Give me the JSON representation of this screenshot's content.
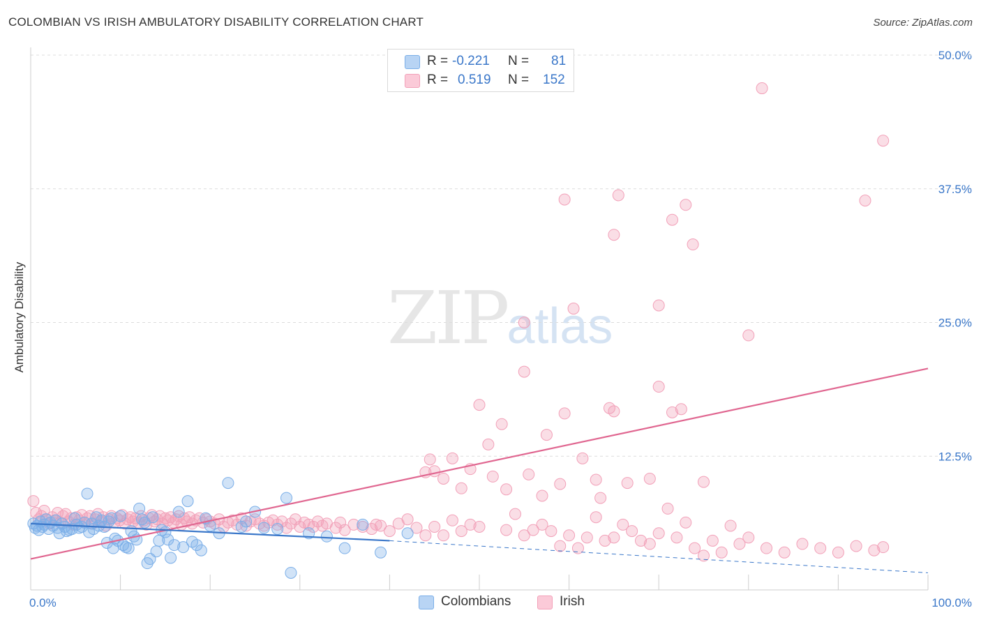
{
  "title": "COLOMBIAN VS IRISH AMBULATORY DISABILITY CORRELATION CHART",
  "source": "Source: ZipAtlas.com",
  "watermark": {
    "zip": "ZIP",
    "atlas": "atlas"
  },
  "legend": {
    "colombians": {
      "r_label": "R = ",
      "r_value": "-0.221",
      "n_label": "N = ",
      "n_value": "81"
    },
    "irish": {
      "r_label": "R = ",
      "r_value": "0.519",
      "n_label": "N = ",
      "n_value": "152"
    }
  },
  "bottom_legend": {
    "colombians": "Colombians",
    "irish": "Irish"
  },
  "colors": {
    "colombians": "#7aaee8",
    "colombians_line": "#3a77c9",
    "irish": "#f2a0b8",
    "irish_line": "#e06690",
    "tick_text": "#3a77c9"
  },
  "chart_data": {
    "type": "scatter",
    "title": "COLOMBIAN VS IRISH AMBULATORY DISABILITY CORRELATION CHART",
    "xlabel": "",
    "ylabel": "Ambulatory Disability",
    "xlim": [
      0,
      100
    ],
    "ylim": [
      0,
      52
    ],
    "x_tick_labels": [
      "0.0%",
      "100.0%"
    ],
    "y_ticks": [
      12.5,
      25,
      37.5,
      50
    ],
    "y_tick_labels": [
      "12.5%",
      "25.0%",
      "37.5%",
      "50.0%"
    ],
    "grid": true,
    "legend_position": "top-center",
    "series": [
      {
        "name": "Colombians",
        "r": -0.221,
        "n": 81,
        "trend": {
          "x0": 0,
          "y0": 6.2,
          "x1": 40,
          "y1": 4.6,
          "dash_to_x": 100,
          "dash_to_y": 1.6
        },
        "points": [
          [
            0.3,
            6.2
          ],
          [
            0.5,
            5.8
          ],
          [
            0.7,
            6.0
          ],
          [
            0.9,
            5.6
          ],
          [
            1.1,
            6.4
          ],
          [
            1.3,
            5.9
          ],
          [
            1.5,
            6.1
          ],
          [
            1.7,
            6.6
          ],
          [
            2.0,
            5.7
          ],
          [
            2.2,
            6.3
          ],
          [
            2.5,
            6.0
          ],
          [
            2.8,
            6.5
          ],
          [
            3.0,
            5.8
          ],
          [
            3.2,
            5.3
          ],
          [
            3.5,
            6.2
          ],
          [
            3.8,
            5.9
          ],
          [
            4.0,
            5.5
          ],
          [
            4.3,
            5.6
          ],
          [
            4.6,
            5.7
          ],
          [
            4.9,
            6.7
          ],
          [
            5.1,
            6.1
          ],
          [
            5.4,
            5.8
          ],
          [
            5.7,
            5.9
          ],
          [
            6.0,
            6.3
          ],
          [
            6.3,
            9.0
          ],
          [
            6.5,
            5.4
          ],
          [
            6.8,
            6.2
          ],
          [
            7.0,
            5.7
          ],
          [
            7.3,
            6.8
          ],
          [
            7.6,
            6.0
          ],
          [
            7.9,
            6.5
          ],
          [
            8.2,
            5.9
          ],
          [
            8.5,
            4.4
          ],
          [
            8.7,
            6.4
          ],
          [
            9.0,
            6.7
          ],
          [
            9.2,
            3.9
          ],
          [
            9.4,
            4.8
          ],
          [
            9.7,
            4.6
          ],
          [
            10.0,
            6.9
          ],
          [
            10.3,
            4.2
          ],
          [
            10.6,
            4.0
          ],
          [
            10.9,
            3.9
          ],
          [
            11.2,
            5.5
          ],
          [
            11.5,
            5.0
          ],
          [
            11.8,
            4.7
          ],
          [
            12.1,
            7.6
          ],
          [
            12.4,
            6.6
          ],
          [
            12.7,
            6.3
          ],
          [
            13.0,
            2.5
          ],
          [
            13.3,
            2.9
          ],
          [
            13.6,
            6.8
          ],
          [
            14.0,
            3.6
          ],
          [
            14.3,
            4.6
          ],
          [
            14.6,
            5.6
          ],
          [
            15.0,
            5.4
          ],
          [
            15.3,
            4.7
          ],
          [
            15.6,
            3.0
          ],
          [
            16.0,
            4.2
          ],
          [
            16.5,
            7.3
          ],
          [
            17.0,
            4.0
          ],
          [
            17.5,
            8.3
          ],
          [
            18.0,
            4.5
          ],
          [
            18.5,
            4.2
          ],
          [
            19.0,
            3.7
          ],
          [
            19.5,
            6.7
          ],
          [
            20.0,
            6.0
          ],
          [
            21.0,
            5.3
          ],
          [
            22.0,
            10.0
          ],
          [
            23.5,
            5.9
          ],
          [
            24.0,
            6.4
          ],
          [
            25.0,
            7.3
          ],
          [
            26.0,
            5.8
          ],
          [
            27.5,
            5.7
          ],
          [
            28.5,
            8.6
          ],
          [
            29.0,
            1.6
          ],
          [
            31.0,
            5.3
          ],
          [
            33.0,
            5.0
          ],
          [
            35.0,
            3.9
          ],
          [
            37.0,
            6.1
          ],
          [
            39.0,
            3.5
          ],
          [
            42.0,
            5.3
          ]
        ]
      },
      {
        "name": "Irish",
        "r": 0.519,
        "n": 152,
        "trend": {
          "x0": 0,
          "y0": 2.9,
          "x1": 100,
          "y1": 20.7
        },
        "points": [
          [
            0.3,
            8.3
          ],
          [
            0.6,
            7.2
          ],
          [
            0.9,
            6.6
          ],
          [
            1.2,
            6.9
          ],
          [
            1.5,
            7.4
          ],
          [
            1.8,
            6.6
          ],
          [
            2.1,
            6.2
          ],
          [
            2.4,
            6.8
          ],
          [
            2.7,
            6.5
          ],
          [
            3.0,
            7.2
          ],
          [
            3.3,
            6.3
          ],
          [
            3.6,
            6.9
          ],
          [
            3.9,
            7.1
          ],
          [
            4.2,
            6.4
          ],
          [
            4.5,
            6.7
          ],
          [
            4.8,
            6.1
          ],
          [
            5.1,
            6.8
          ],
          [
            5.4,
            6.5
          ],
          [
            5.7,
            7.0
          ],
          [
            6.0,
            6.3
          ],
          [
            6.3,
            6.7
          ],
          [
            6.6,
            6.9
          ],
          [
            6.9,
            6.2
          ],
          [
            7.2,
            6.6
          ],
          [
            7.5,
            7.1
          ],
          [
            7.8,
            6.4
          ],
          [
            8.1,
            6.8
          ],
          [
            8.4,
            6.0
          ],
          [
            8.7,
            6.6
          ],
          [
            9.0,
            6.9
          ],
          [
            9.3,
            6.3
          ],
          [
            9.6,
            6.7
          ],
          [
            9.9,
            6.5
          ],
          [
            10.2,
            7.0
          ],
          [
            10.5,
            6.2
          ],
          [
            10.8,
            6.6
          ],
          [
            11.1,
            6.8
          ],
          [
            11.4,
            6.4
          ],
          [
            11.7,
            6.7
          ],
          [
            12.0,
            6.3
          ],
          [
            12.3,
            6.9
          ],
          [
            12.6,
            6.5
          ],
          [
            12.9,
            6.1
          ],
          [
            13.2,
            6.7
          ],
          [
            13.5,
            7.0
          ],
          [
            13.8,
            6.4
          ],
          [
            14.1,
            6.6
          ],
          [
            14.4,
            6.9
          ],
          [
            14.7,
            6.2
          ],
          [
            15.0,
            6.7
          ],
          [
            15.3,
            6.5
          ],
          [
            15.6,
            6.8
          ],
          [
            15.9,
            6.3
          ],
          [
            16.2,
            6.6
          ],
          [
            16.5,
            6.9
          ],
          [
            16.8,
            6.1
          ],
          [
            17.1,
            6.7
          ],
          [
            17.4,
            6.4
          ],
          [
            17.7,
            6.8
          ],
          [
            18.0,
            6.2
          ],
          [
            18.4,
            6.5
          ],
          [
            18.8,
            6.7
          ],
          [
            19.2,
            6.3
          ],
          [
            19.6,
            6.6
          ],
          [
            20.0,
            6.4
          ],
          [
            20.5,
            6.2
          ],
          [
            21.0,
            6.6
          ],
          [
            21.5,
            5.9
          ],
          [
            22.0,
            6.3
          ],
          [
            22.5,
            6.5
          ],
          [
            23.0,
            6.1
          ],
          [
            23.5,
            6.7
          ],
          [
            24.0,
            6.0
          ],
          [
            24.5,
            6.4
          ],
          [
            25.0,
            6.6
          ],
          [
            25.5,
            6.2
          ],
          [
            26.0,
            6.0
          ],
          [
            26.5,
            6.3
          ],
          [
            27.0,
            6.5
          ],
          [
            27.5,
            6.1
          ],
          [
            28.0,
            6.4
          ],
          [
            28.5,
            5.8
          ],
          [
            29.0,
            6.2
          ],
          [
            29.5,
            6.6
          ],
          [
            30.0,
            5.9
          ],
          [
            30.5,
            6.3
          ],
          [
            31.0,
            6.1
          ],
          [
            31.5,
            5.9
          ],
          [
            32.0,
            6.4
          ],
          [
            32.5,
            6.0
          ],
          [
            33.0,
            6.2
          ],
          [
            34.0,
            5.8
          ],
          [
            34.5,
            6.3
          ],
          [
            35.0,
            5.6
          ],
          [
            36.0,
            6.1
          ],
          [
            37.0,
            5.9
          ],
          [
            38.0,
            5.7
          ],
          [
            38.5,
            6.1
          ],
          [
            39.0,
            6.0
          ],
          [
            40.0,
            5.5
          ],
          [
            41.0,
            6.2
          ],
          [
            42.0,
            6.6
          ],
          [
            43.0,
            5.8
          ],
          [
            44.0,
            5.1
          ],
          [
            45.0,
            5.9
          ],
          [
            46.0,
            5.1
          ],
          [
            47.0,
            6.5
          ],
          [
            48.0,
            5.5
          ],
          [
            49.0,
            6.1
          ],
          [
            50.0,
            5.9
          ],
          [
            53.0,
            5.6
          ],
          [
            54.0,
            7.1
          ],
          [
            55.0,
            5.1
          ],
          [
            56.0,
            5.6
          ],
          [
            57.0,
            6.1
          ],
          [
            58.0,
            5.5
          ],
          [
            59.0,
            4.1
          ],
          [
            60.0,
            5.1
          ],
          [
            61.0,
            3.9
          ],
          [
            62.0,
            4.9
          ],
          [
            63.0,
            6.8
          ],
          [
            64.0,
            4.6
          ],
          [
            65.0,
            4.9
          ],
          [
            66.0,
            6.1
          ],
          [
            67.0,
            5.5
          ],
          [
            68.0,
            4.6
          ],
          [
            69.0,
            4.3
          ],
          [
            70.0,
            5.3
          ],
          [
            71.0,
            7.6
          ],
          [
            72.0,
            4.9
          ],
          [
            73.0,
            6.3
          ],
          [
            74.0,
            3.9
          ],
          [
            75.0,
            3.2
          ],
          [
            76.0,
            4.6
          ],
          [
            77.0,
            3.5
          ],
          [
            78.0,
            6.0
          ],
          [
            79.0,
            4.3
          ],
          [
            80.0,
            4.9
          ],
          [
            82.0,
            3.9
          ],
          [
            84.0,
            3.5
          ],
          [
            86.0,
            4.3
          ],
          [
            88.0,
            3.9
          ],
          [
            90.0,
            3.5
          ],
          [
            92.0,
            4.1
          ],
          [
            94.0,
            3.7
          ],
          [
            95.0,
            4.0
          ],
          [
            59.5,
            36.5
          ],
          [
            65.5,
            36.9
          ],
          [
            73.0,
            36.0
          ],
          [
            81.5,
            46.9
          ],
          [
            95.0,
            42.0
          ],
          [
            93.0,
            36.4
          ]
        ],
        "outliers": [
          [
            71.5,
            34.6
          ],
          [
            73.8,
            32.3
          ],
          [
            65.0,
            33.2
          ],
          [
            60.5,
            26.3
          ],
          [
            70.0,
            26.6
          ],
          [
            55.0,
            25.0
          ],
          [
            80.0,
            23.8
          ],
          [
            55.0,
            20.4
          ],
          [
            70.0,
            19.0
          ],
          [
            50.0,
            17.3
          ],
          [
            59.5,
            16.5
          ],
          [
            64.5,
            17.0
          ],
          [
            65.0,
            16.7
          ],
          [
            71.5,
            16.6
          ],
          [
            72.5,
            16.9
          ],
          [
            52.5,
            15.5
          ],
          [
            57.5,
            14.5
          ],
          [
            51.0,
            13.6
          ],
          [
            44.5,
            12.2
          ],
          [
            47.0,
            12.3
          ],
          [
            61.5,
            12.3
          ],
          [
            63.0,
            10.3
          ],
          [
            49.0,
            11.3
          ],
          [
            51.5,
            10.6
          ],
          [
            53.0,
            9.4
          ],
          [
            55.5,
            10.8
          ],
          [
            57.0,
            8.8
          ],
          [
            59.0,
            9.9
          ],
          [
            63.5,
            8.6
          ],
          [
            66.5,
            10.0
          ],
          [
            69.0,
            10.4
          ],
          [
            75.0,
            10.1
          ],
          [
            46.0,
            10.4
          ],
          [
            48.0,
            9.5
          ],
          [
            45.0,
            11.1
          ],
          [
            44.0,
            11.0
          ]
        ]
      }
    ]
  }
}
